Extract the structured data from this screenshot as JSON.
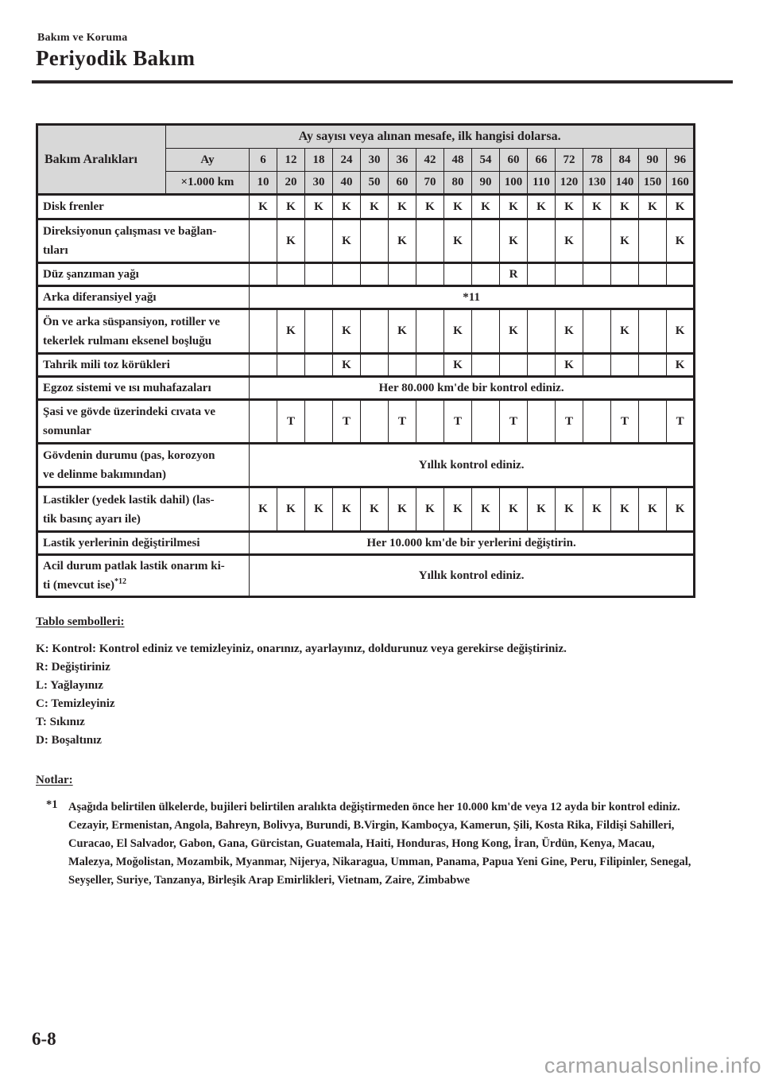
{
  "page": {
    "breadcrumb": "Bakım ve Koruma",
    "title": "Periyodik Bakım",
    "page_number": "6-8",
    "watermark": "carmanualsonline.info"
  },
  "colors": {
    "header_bg": "#d8d8d8",
    "border": "#231f20",
    "text": "#231f20",
    "watermark": "#a3a3a3"
  },
  "table": {
    "header": {
      "corner_label": "Bakım Aralıkları",
      "span_label": "Ay sayısı veya alınan mesafe, ilk hangisi dolarsa.",
      "row_month_label": "Ay",
      "months": [
        "6",
        "12",
        "18",
        "24",
        "30",
        "36",
        "42",
        "48",
        "54",
        "60",
        "66",
        "72",
        "78",
        "84",
        "90",
        "96"
      ],
      "row_km_label": "×1.000 km",
      "km": [
        "10",
        "20",
        "30",
        "40",
        "50",
        "60",
        "70",
        "80",
        "90",
        "100",
        "110",
        "120",
        "130",
        "140",
        "150",
        "160"
      ]
    },
    "rows": [
      {
        "label": "Disk frenler",
        "cells": [
          "K",
          "K",
          "K",
          "K",
          "K",
          "K",
          "K",
          "K",
          "K",
          "K",
          "K",
          "K",
          "K",
          "K",
          "K",
          "K"
        ]
      },
      {
        "label": "Direksiyonun çalışması ve bağlan-\ntıları",
        "cells": [
          "",
          "K",
          "",
          "K",
          "",
          "K",
          "",
          "K",
          "",
          "K",
          "",
          "K",
          "",
          "K",
          "",
          "K"
        ]
      },
      {
        "label": "Düz şanzıman yağı",
        "cells": [
          "",
          "",
          "",
          "",
          "",
          "",
          "",
          "",
          "",
          "R",
          "",
          "",
          "",
          "",
          "",
          ""
        ]
      },
      {
        "label": "Arka diferansiyel yağı",
        "merged": "*11"
      },
      {
        "label": "Ön ve arka süspansiyon, rotiller ve\ntekerlek rulmanı eksenel boşluğu",
        "cells": [
          "",
          "K",
          "",
          "K",
          "",
          "K",
          "",
          "K",
          "",
          "K",
          "",
          "K",
          "",
          "K",
          "",
          "K"
        ]
      },
      {
        "label": "Tahrik mili toz körükleri",
        "cells": [
          "",
          "",
          "",
          "K",
          "",
          "",
          "",
          "K",
          "",
          "",
          "",
          "K",
          "",
          "",
          "",
          "K"
        ]
      },
      {
        "label": "Egzoz sistemi ve ısı muhafazaları",
        "merged": "Her 80.000 km'de bir kontrol ediniz."
      },
      {
        "label": "Şasi ve gövde üzerindeki cıvata ve\nsomunlar",
        "cells": [
          "",
          "T",
          "",
          "T",
          "",
          "T",
          "",
          "T",
          "",
          "T",
          "",
          "T",
          "",
          "T",
          "",
          "T"
        ]
      },
      {
        "label": "Gövdenin durumu (pas, korozyon\nve delinme bakımından)",
        "merged": "Yıllık kontrol ediniz."
      },
      {
        "label": "Lastikler (yedek lastik dahil) (las-\ntik basınç ayarı ile)",
        "cells": [
          "K",
          "K",
          "K",
          "K",
          "K",
          "K",
          "K",
          "K",
          "K",
          "K",
          "K",
          "K",
          "K",
          "K",
          "K",
          "K"
        ]
      },
      {
        "label": "Lastik yerlerinin değiştirilmesi",
        "merged": "Her 10.000 km'de bir yerlerini değiştirin."
      },
      {
        "label": "Acil durum patlak lastik onarım ki-\nti (mevcut ise)",
        "label_sup": "*12",
        "merged": "Yıllık kontrol ediniz."
      }
    ]
  },
  "symbols": {
    "heading": "Tablo sembolleri:",
    "items": [
      "K: Kontrol: Kontrol ediniz ve temizleyiniz, onarınız, ayarlayınız, doldurunuz veya gerekirse değiştiriniz.",
      "R: Değiştiriniz",
      "L: Yağlayınız",
      "C: Temizleyiniz",
      "T: Sıkınız",
      "D: Boşaltınız"
    ]
  },
  "notes": {
    "heading": "Notlar:",
    "items": [
      {
        "marker": "*1",
        "paragraphs": [
          "Aşağıda belirtilen ülkelerde, bujileri belirtilen aralıkta değiştirmeden önce her 10.000 km'de veya 12 ayda bir kontrol ediniz.",
          "Cezayir, Ermenistan, Angola, Bahreyn, Bolivya, Burundi, B.Virgin, Kamboçya, Kamerun, Şili, Kosta Rika, Fildişi Sahilleri, Curacao, El Salvador, Gabon, Gana, Gürcistan, Guatemala, Haiti, Honduras, Hong Kong, İran, Ürdün, Kenya, Macau, Malezya, Moğolistan, Mozambik, Myanmar, Nijerya, Nikaragua, Umman, Panama, Papua Yeni Gine, Peru, Filipinler, Senegal, Seyşeller, Suriye, Tanzanya, Birleşik Arap Emirlikleri, Vietnam, Zaire, Zimbabwe"
        ]
      }
    ]
  }
}
